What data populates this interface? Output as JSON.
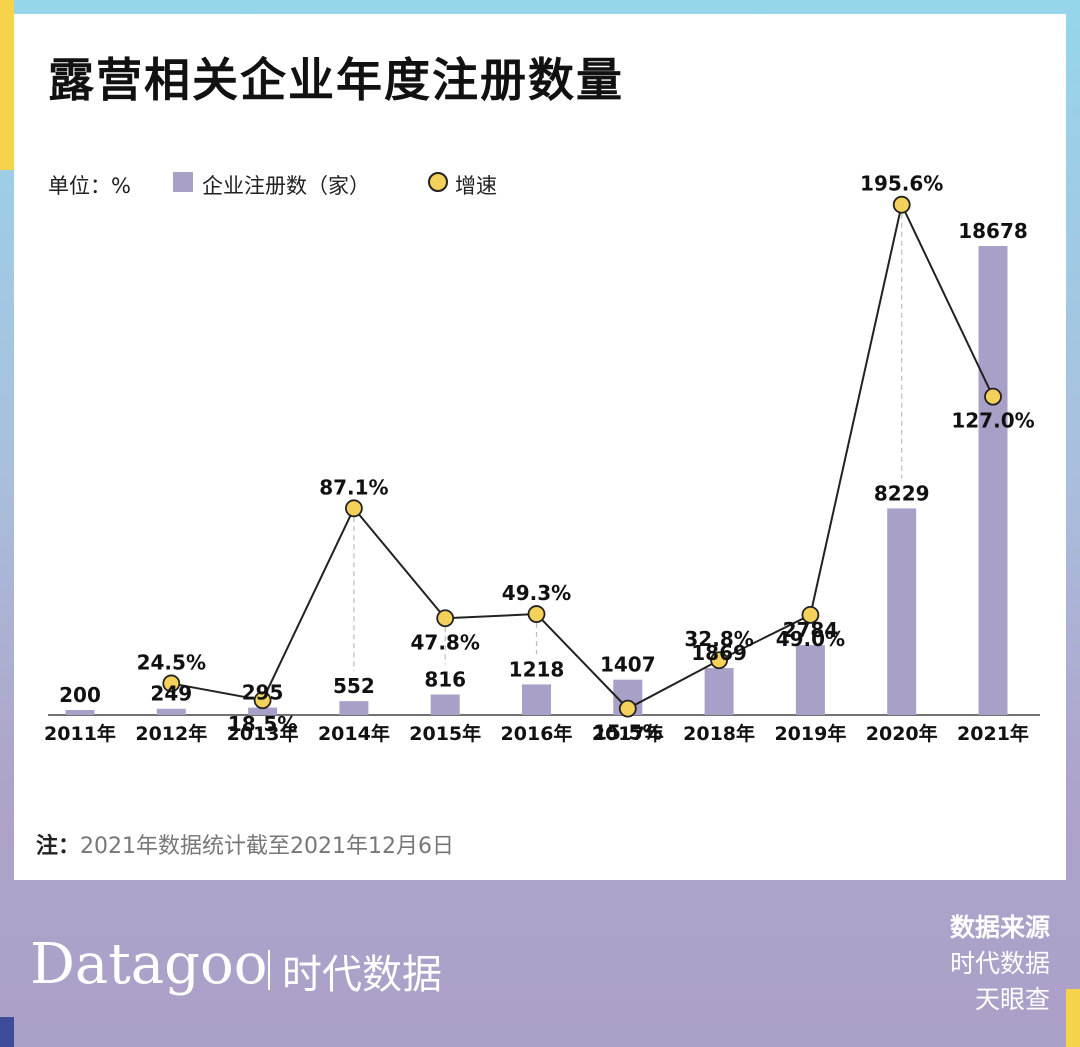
{
  "title": "露营相关企业年度注册数量",
  "unit_label": "单位：%",
  "note": {
    "label": "注：",
    "text": "2021年数据统计截至2021年12月6日"
  },
  "brand": {
    "name": "Datagoo",
    "cn": "时代数据"
  },
  "source": {
    "heading": "数据来源",
    "items": [
      "时代数据",
      "天眼查"
    ]
  },
  "colors": {
    "bar": "#a9a0c8",
    "dot": "#f4d15a",
    "line": "#222222",
    "frame": "#aba0c8"
  },
  "chart_data": {
    "type": "bar",
    "categories": [
      "2011年",
      "2012年",
      "2013年",
      "2014年",
      "2015年",
      "2016年",
      "2017年",
      "2018年",
      "2019年",
      "2020年",
      "2021年"
    ],
    "series": [
      {
        "name": "企业注册数（家）",
        "type": "bar",
        "values": [
          200,
          249,
          295,
          552,
          816,
          1218,
          1407,
          1869,
          2784,
          8229,
          18678
        ],
        "labels": [
          "200",
          "249",
          "295",
          "552",
          "816",
          "1218",
          "1407",
          "1869",
          "2784",
          "8229",
          "18678"
        ]
      },
      {
        "name": "增速",
        "type": "line",
        "values": [
          null,
          24.5,
          18.5,
          87.1,
          47.8,
          49.3,
          15.5,
          32.8,
          49.0,
          195.6,
          127.0
        ],
        "labels": [
          "",
          "24.5%",
          "18.5%",
          "87.1%",
          "47.8%",
          "49.3%",
          "15.5%",
          "32.8%",
          "49.0%",
          "195.6%",
          "127.0%"
        ]
      }
    ],
    "legend_placement": "top-left",
    "grid": false
  }
}
